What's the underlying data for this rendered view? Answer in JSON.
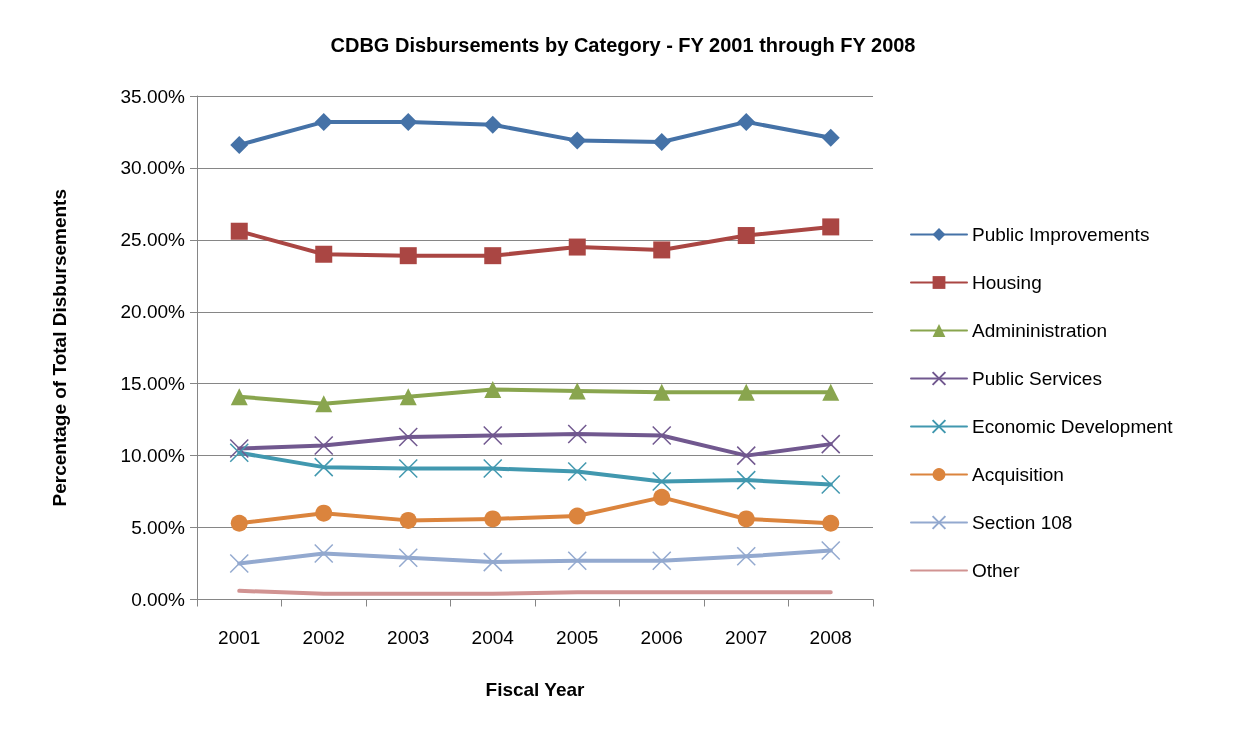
{
  "chart_data": {
    "type": "line",
    "title": "CDBG Disbursements by Category - FY 2001 through FY 2008",
    "xlabel": "Fiscal Year",
    "ylabel": "Percentage of Total Disbursements",
    "categories": [
      "2001",
      "2002",
      "2003",
      "2004",
      "2005",
      "2006",
      "2007",
      "2008"
    ],
    "ylim": [
      0,
      35
    ],
    "yticks": [
      {
        "value": 0,
        "label": "0.00%"
      },
      {
        "value": 5,
        "label": "5.00%"
      },
      {
        "value": 10,
        "label": "10.00%"
      },
      {
        "value": 15,
        "label": "15.00%"
      },
      {
        "value": 20,
        "label": "20.00%"
      },
      {
        "value": 25,
        "label": "25.00%"
      },
      {
        "value": 30,
        "label": "30.00%"
      },
      {
        "value": 35,
        "label": "35.00%"
      }
    ],
    "grid": "y",
    "legend": "right",
    "line_style": "solid",
    "series": [
      {
        "name": "Public Improvements",
        "color": "#4572a7",
        "marker": "diamond",
        "values": [
          31.6,
          33.2,
          33.2,
          33.0,
          31.9,
          31.8,
          33.2,
          32.1
        ]
      },
      {
        "name": "Housing",
        "color": "#aa4643",
        "marker": "square",
        "values": [
          25.6,
          24.0,
          23.9,
          23.9,
          24.5,
          24.3,
          25.3,
          25.9
        ]
      },
      {
        "name": "Admininistration",
        "color": "#89a54e",
        "marker": "triangle",
        "values": [
          14.1,
          13.6,
          14.1,
          14.6,
          14.5,
          14.4,
          14.4,
          14.4
        ]
      },
      {
        "name": "Public Services",
        "color": "#71588f",
        "marker": "cross",
        "values": [
          10.5,
          10.7,
          11.3,
          11.4,
          11.5,
          11.4,
          10.0,
          10.8
        ]
      },
      {
        "name": "Economic Development",
        "color": "#4198af",
        "marker": "cross",
        "values": [
          10.2,
          9.2,
          9.1,
          9.1,
          8.9,
          8.2,
          8.3,
          8.0
        ]
      },
      {
        "name": "Acquisition",
        "color": "#db843d",
        "marker": "circle",
        "values": [
          5.3,
          6.0,
          5.5,
          5.6,
          5.8,
          7.1,
          5.6,
          5.3
        ]
      },
      {
        "name": "Section 108",
        "color": "#93a9cf",
        "marker": "cross",
        "values": [
          2.5,
          3.2,
          2.9,
          2.6,
          2.7,
          2.7,
          3.0,
          3.4
        ]
      },
      {
        "name": "Other",
        "color": "#d19392",
        "marker": "none",
        "values": [
          0.6,
          0.4,
          0.4,
          0.4,
          0.5,
          0.5,
          0.5,
          0.5
        ]
      }
    ]
  }
}
